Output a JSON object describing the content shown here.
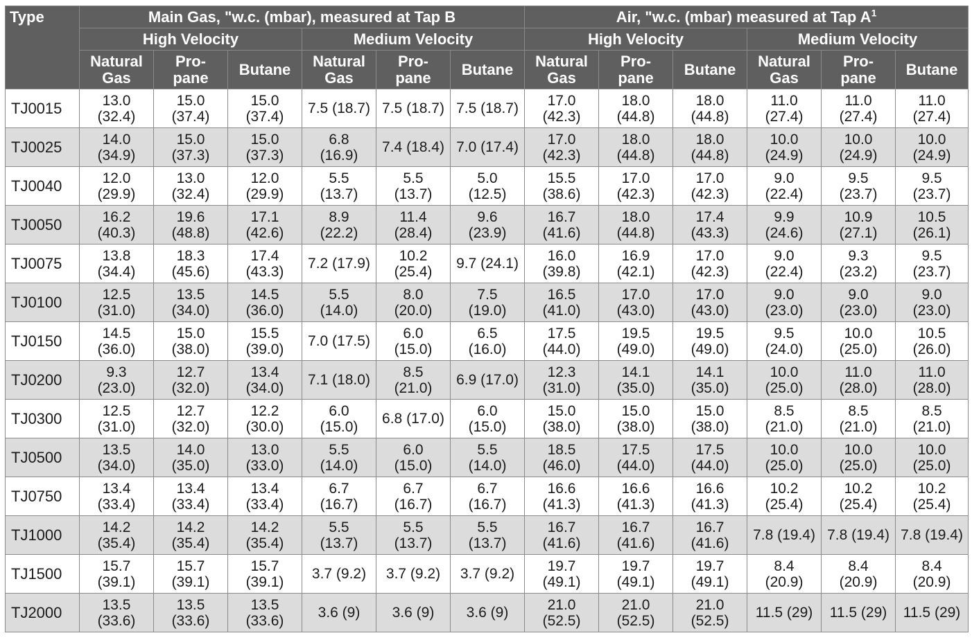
{
  "table": {
    "type_header": "Type",
    "groups": [
      {
        "label": "Main Gas, \"w.c. (mbar), measured at Tap B",
        "sup": ""
      },
      {
        "label": "Air, \"w.c. (mbar) measured at Tap A",
        "sup": "1"
      }
    ],
    "velocities": [
      "High Velocity",
      "Medium Velocity",
      "High Velocity",
      "Medium Velocity"
    ],
    "fuels": [
      [
        "Natural",
        "Gas"
      ],
      [
        "Pro-",
        "pane"
      ],
      [
        "Butane",
        ""
      ],
      [
        "Natural",
        "Gas"
      ],
      [
        "Pro-",
        "pane"
      ],
      [
        "Butane",
        ""
      ],
      [
        "Natural",
        "Gas"
      ],
      [
        "Pro-",
        "pane"
      ],
      [
        "Butane",
        ""
      ],
      [
        "Natural",
        "Gas"
      ],
      [
        "Pro-",
        "pane"
      ],
      [
        "Butane",
        ""
      ]
    ],
    "rows": [
      {
        "type": "TJ0015",
        "cells": [
          [
            "13.0",
            "(32.4)"
          ],
          [
            "15.0",
            "(37.4)"
          ],
          [
            "15.0",
            "(37.4)"
          ],
          [
            "7.5 (18.7)",
            ""
          ],
          [
            "7.5 (18.7)",
            ""
          ],
          [
            "7.5 (18.7)",
            ""
          ],
          [
            "17.0",
            "(42.3)"
          ],
          [
            "18.0",
            "(44.8)"
          ],
          [
            "18.0",
            "(44.8)"
          ],
          [
            "11.0",
            "(27.4)"
          ],
          [
            "11.0",
            "(27.4)"
          ],
          [
            "11.0",
            "(27.4)"
          ]
        ]
      },
      {
        "type": "TJ0025",
        "cells": [
          [
            "14.0",
            "(34.9)"
          ],
          [
            "15.0",
            "(37.3)"
          ],
          [
            "15.0",
            "(37.3)"
          ],
          [
            "6.8",
            "(16.9)"
          ],
          [
            "7.4 (18.4)",
            ""
          ],
          [
            "7.0 (17.4)",
            ""
          ],
          [
            "17.0",
            "(42.3)"
          ],
          [
            "18.0",
            "(44.8)"
          ],
          [
            "18.0",
            "(44.8)"
          ],
          [
            "10.0",
            "(24.9)"
          ],
          [
            "10.0",
            "(24.9)"
          ],
          [
            "10.0",
            "(24.9)"
          ]
        ]
      },
      {
        "type": "TJ0040",
        "cells": [
          [
            "12.0",
            "(29.9)"
          ],
          [
            "13.0",
            "(32.4)"
          ],
          [
            "12.0",
            "(29.9)"
          ],
          [
            "5.5",
            "(13.7)"
          ],
          [
            "5.5",
            "(13.7)"
          ],
          [
            "5.0",
            "(12.5)"
          ],
          [
            "15.5",
            "(38.6)"
          ],
          [
            "17.0",
            "(42.3)"
          ],
          [
            "17.0",
            "(42.3)"
          ],
          [
            "9.0",
            "(22.4)"
          ],
          [
            "9.5",
            "(23.7)"
          ],
          [
            "9.5",
            "(23.7)"
          ]
        ]
      },
      {
        "type": "TJ0050",
        "cells": [
          [
            "16.2",
            "(40.3)"
          ],
          [
            "19.6",
            "(48.8)"
          ],
          [
            "17.1",
            "(42.6)"
          ],
          [
            "8.9",
            "(22.2)"
          ],
          [
            "11.4",
            "(28.4)"
          ],
          [
            "9.6",
            "(23.9)"
          ],
          [
            "16.7",
            "(41.6)"
          ],
          [
            "18.0",
            "(44.8)"
          ],
          [
            "17.4",
            "(43.3)"
          ],
          [
            "9.9",
            "(24.6)"
          ],
          [
            "10.9",
            "(27.1)"
          ],
          [
            "10.5",
            "(26.1)"
          ]
        ]
      },
      {
        "type": "TJ0075",
        "cells": [
          [
            "13.8",
            "(34.4)"
          ],
          [
            "18.3",
            "(45.6)"
          ],
          [
            "17.4",
            "(43.3)"
          ],
          [
            "7.2 (17.9)",
            ""
          ],
          [
            "10.2",
            "(25.4)"
          ],
          [
            "9.7 (24.1)",
            ""
          ],
          [
            "16.0",
            "(39.8)"
          ],
          [
            "16.9",
            "(42.1)"
          ],
          [
            "17.0",
            "(42.3)"
          ],
          [
            "9.0",
            "(22.4)"
          ],
          [
            "9.3",
            "(23.2)"
          ],
          [
            "9.5",
            "(23.7)"
          ]
        ]
      },
      {
        "type": "TJ0100",
        "cells": [
          [
            "12.5",
            "(31.0)"
          ],
          [
            "13.5",
            "(34.0)"
          ],
          [
            "14.5",
            "(36.0)"
          ],
          [
            "5.5",
            "(14.0)"
          ],
          [
            "8.0",
            "(20.0)"
          ],
          [
            "7.5",
            "(19.0)"
          ],
          [
            "16.5",
            "(41.0)"
          ],
          [
            "17.0",
            "(43.0)"
          ],
          [
            "17.0",
            "(43.0)"
          ],
          [
            "9.0",
            "(23.0)"
          ],
          [
            "9.0",
            "(23.0)"
          ],
          [
            "9.0",
            "(23.0)"
          ]
        ]
      },
      {
        "type": "TJ0150",
        "cells": [
          [
            "14.5",
            "(36.0)"
          ],
          [
            "15.0",
            "(38.0)"
          ],
          [
            "15.5",
            "(39.0)"
          ],
          [
            "7.0 (17.5)",
            ""
          ],
          [
            "6.0",
            "(15.0)"
          ],
          [
            "6.5",
            "(16.0)"
          ],
          [
            "17.5",
            "(44.0)"
          ],
          [
            "19.5",
            "(49.0)"
          ],
          [
            "19.5",
            "(49.0)"
          ],
          [
            "9.5",
            "(24.0)"
          ],
          [
            "10.0",
            "(25.0)"
          ],
          [
            "10.5",
            "(26.0)"
          ]
        ]
      },
      {
        "type": "TJ0200",
        "cells": [
          [
            "9.3",
            "(23.0)"
          ],
          [
            "12.7",
            "(32.0)"
          ],
          [
            "13.4",
            "(34.0)"
          ],
          [
            "7.1 (18.0)",
            ""
          ],
          [
            "8.5",
            "(21.0)"
          ],
          [
            "6.9 (17.0)",
            ""
          ],
          [
            "12.3",
            "(31.0)"
          ],
          [
            "14.1",
            "(35.0)"
          ],
          [
            "14.1",
            "(35.0)"
          ],
          [
            "10.0",
            "(25.0)"
          ],
          [
            "11.0",
            "(28.0)"
          ],
          [
            "11.0",
            "(28.0)"
          ]
        ]
      },
      {
        "type": "TJ0300",
        "cells": [
          [
            "12.5",
            "(31.0)"
          ],
          [
            "12.7",
            "(32.0)"
          ],
          [
            "12.2",
            "(30.0)"
          ],
          [
            "6.0",
            "(15.0)"
          ],
          [
            "6.8 (17.0)",
            ""
          ],
          [
            "6.0",
            "(15.0)"
          ],
          [
            "15.0",
            "(38.0)"
          ],
          [
            "15.0",
            "(38.0)"
          ],
          [
            "15.0",
            "(38.0)"
          ],
          [
            "8.5",
            "(21.0)"
          ],
          [
            "8.5",
            "(21.0)"
          ],
          [
            "8.5",
            "(21.0)"
          ]
        ]
      },
      {
        "type": "TJ0500",
        "cells": [
          [
            "13.5",
            "(34.0)"
          ],
          [
            "14.0",
            "(35.0)"
          ],
          [
            "13.0",
            "(33.0)"
          ],
          [
            "5.5",
            "(14.0)"
          ],
          [
            "6.0",
            "(15.0)"
          ],
          [
            "5.5",
            "(14.0)"
          ],
          [
            "18.5",
            "(46.0)"
          ],
          [
            "17.5",
            "(44.0)"
          ],
          [
            "17.5",
            "(44.0)"
          ],
          [
            "10.0",
            "(25.0)"
          ],
          [
            "10.0",
            "(25.0)"
          ],
          [
            "10.0",
            "(25.0)"
          ]
        ]
      },
      {
        "type": "TJ0750",
        "cells": [
          [
            "13.4",
            "(33.4)"
          ],
          [
            "13.4",
            "(33.4)"
          ],
          [
            "13.4",
            "(33.4)"
          ],
          [
            "6.7",
            "(16.7)"
          ],
          [
            "6.7",
            "(16.7)"
          ],
          [
            "6.7",
            "(16.7)"
          ],
          [
            "16.6",
            "(41.3)"
          ],
          [
            "16.6",
            "(41.3)"
          ],
          [
            "16.6",
            "(41.3)"
          ],
          [
            "10.2",
            "(25.4)"
          ],
          [
            "10.2",
            "(25.4)"
          ],
          [
            "10.2",
            "(25.4)"
          ]
        ]
      },
      {
        "type": "TJ1000",
        "cells": [
          [
            "14.2",
            "(35.4)"
          ],
          [
            "14.2",
            "(35.4)"
          ],
          [
            "14.2",
            "(35.4)"
          ],
          [
            "5.5",
            "(13.7)"
          ],
          [
            "5.5",
            "(13.7)"
          ],
          [
            "5.5",
            "(13.7)"
          ],
          [
            "16.7",
            "(41.6)"
          ],
          [
            "16.7",
            "(41.6)"
          ],
          [
            "16.7",
            "(41.6)"
          ],
          [
            "7.8 (19.4)",
            ""
          ],
          [
            "7.8 (19.4)",
            ""
          ],
          [
            "7.8 (19.4)",
            ""
          ]
        ]
      },
      {
        "type": "TJ1500",
        "cells": [
          [
            "15.7",
            "(39.1)"
          ],
          [
            "15.7",
            "(39.1)"
          ],
          [
            "15.7",
            "(39.1)"
          ],
          [
            "3.7 (9.2)",
            ""
          ],
          [
            "3.7 (9.2)",
            ""
          ],
          [
            "3.7 (9.2)",
            ""
          ],
          [
            "19.7",
            "(49.1)"
          ],
          [
            "19.7",
            "(49.1)"
          ],
          [
            "19.7",
            "(49.1)"
          ],
          [
            "8.4",
            "(20.9)"
          ],
          [
            "8.4",
            "(20.9)"
          ],
          [
            "8.4",
            "(20.9)"
          ]
        ]
      },
      {
        "type": "TJ2000",
        "cells": [
          [
            "13.5",
            "(33.6)"
          ],
          [
            "13.5",
            "(33.6)"
          ],
          [
            "13.5",
            "(33.6)"
          ],
          [
            "3.6 (9)",
            ""
          ],
          [
            "3.6 (9)",
            ""
          ],
          [
            "3.6 (9)",
            ""
          ],
          [
            "21.0",
            "(52.5)"
          ],
          [
            "21.0",
            "(52.5)"
          ],
          [
            "21.0",
            "(52.5)"
          ],
          [
            "11.5 (29)",
            ""
          ],
          [
            "11.5 (29)",
            ""
          ],
          [
            "11.5 (29)",
            ""
          ]
        ]
      }
    ]
  }
}
